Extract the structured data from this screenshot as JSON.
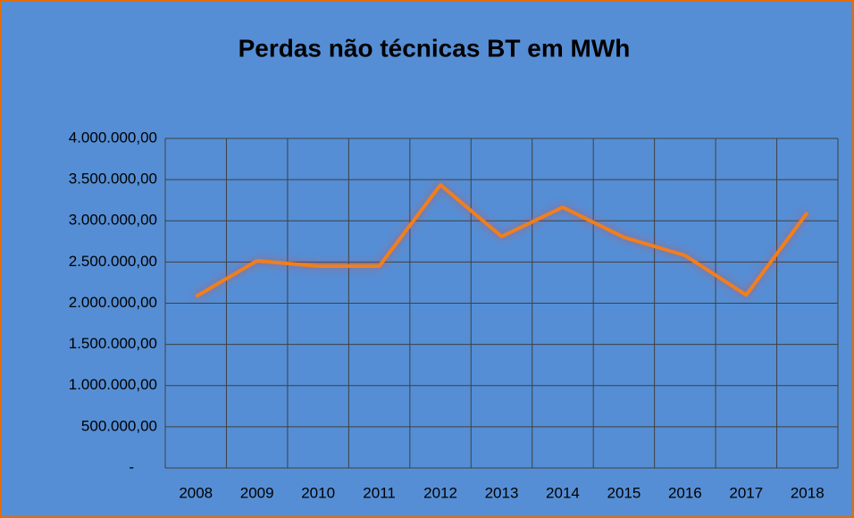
{
  "chart_data": {
    "type": "line",
    "title": "Perdas não técnicas BT em MWh",
    "categories": [
      "2008",
      "2009",
      "2010",
      "2011",
      "2012",
      "2013",
      "2014",
      "2015",
      "2016",
      "2017",
      "2018"
    ],
    "series": [
      {
        "name": "Perdas não técnicas BT em MWh",
        "color": "#f07f1e",
        "values": [
          2080000,
          2515000,
          2450000,
          2450000,
          3436000,
          2810000,
          3165000,
          2800000,
          2580000,
          2100000,
          3100000
        ]
      }
    ],
    "ylim": [
      0,
      4000000
    ],
    "yticks": [
      {
        "value": 0,
        "label": "-"
      },
      {
        "value": 500000,
        "label": "500.000,00"
      },
      {
        "value": 1000000,
        "label": "1.000.000,00"
      },
      {
        "value": 1500000,
        "label": "1.500.000,00"
      },
      {
        "value": 2000000,
        "label": "2.000.000,00"
      },
      {
        "value": 2500000,
        "label": "2.500.000,00"
      },
      {
        "value": 3000000,
        "label": "3.000.000,00"
      },
      {
        "value": 3500000,
        "label": "3.500.000,00"
      },
      {
        "value": 4000000,
        "label": "4.000.000,00"
      }
    ],
    "grid": true
  }
}
